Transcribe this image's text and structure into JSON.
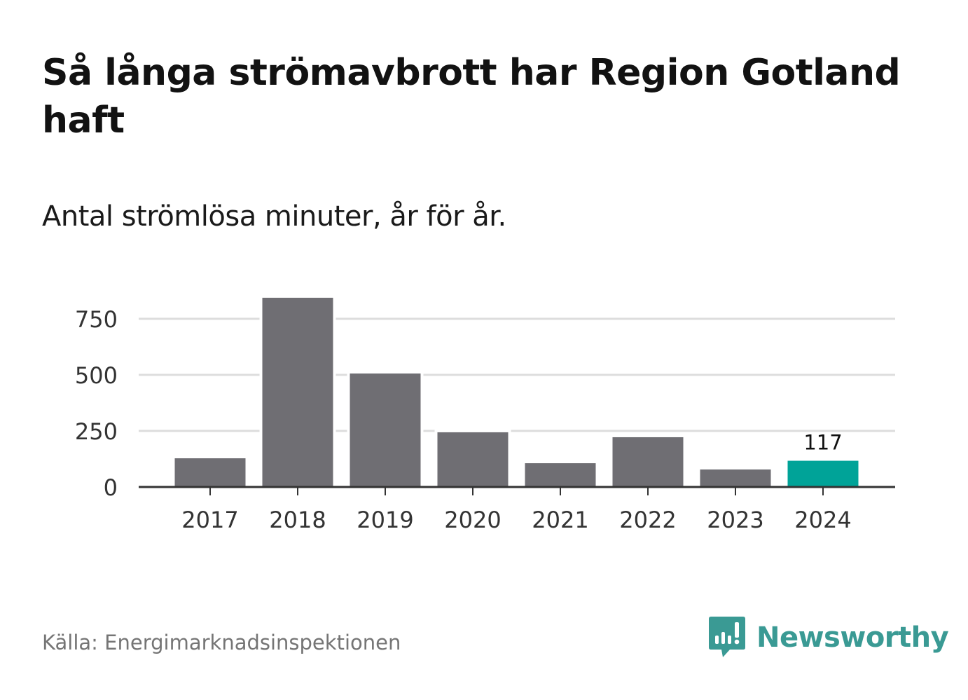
{
  "title": "Så långa strömavbrott har Region Gotland haft",
  "subtitle": "Antal strömlösa minuter, år för år.",
  "source": "Källa: Energimarknadsinspektionen",
  "brand": "Newsworthy",
  "colors": {
    "bar": "#6f6e73",
    "highlight": "#00a398",
    "grid": "#dddddd",
    "axis": "#333333",
    "brand": "#3a9a94"
  },
  "chart_data": {
    "type": "bar",
    "title": "Så långa strömavbrott har Region Gotland haft",
    "subtitle": "Antal strömlösa minuter, år för år.",
    "xlabel": "",
    "ylabel": "",
    "categories": [
      "2017",
      "2018",
      "2019",
      "2020",
      "2021",
      "2022",
      "2023",
      "2024"
    ],
    "values": [
      128,
      844,
      506,
      244,
      106,
      222,
      78,
      117
    ],
    "highlight_index": 7,
    "data_labels": [
      {
        "index": 7,
        "text": "117"
      }
    ],
    "yticks": [
      0,
      250,
      500,
      750
    ],
    "ytick_labels": [
      "0",
      "250",
      "500",
      "750"
    ],
    "ylim": [
      0,
      850
    ],
    "grid": true
  }
}
